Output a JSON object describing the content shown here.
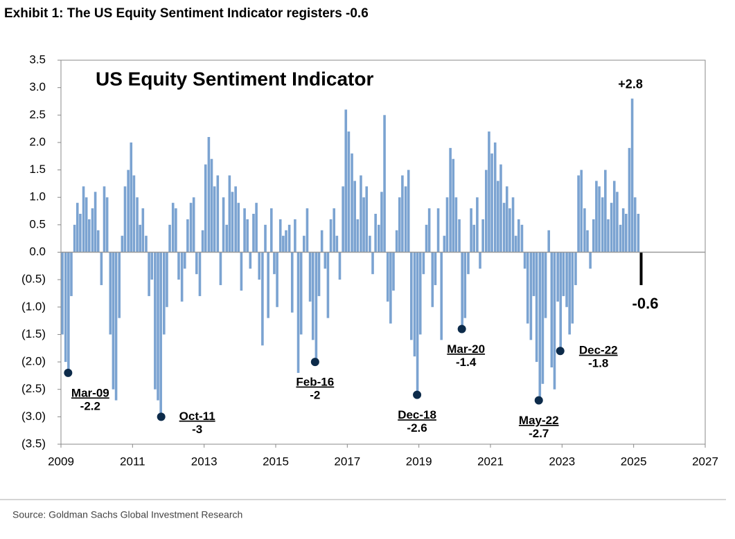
{
  "chart_data": {
    "type": "bar",
    "heading": "Exhibit 1: The US Equity Sentiment Indicator registers -0.6",
    "title": "US Equity Sentiment Indicator",
    "source": "Source: Goldman Sachs Global Investment Research",
    "x": [
      2009.04,
      2009.13,
      2009.21,
      2009.29,
      2009.38,
      2009.46,
      2009.54,
      2009.63,
      2009.71,
      2009.79,
      2009.88,
      2009.96,
      2010.04,
      2010.13,
      2010.21,
      2010.29,
      2010.38,
      2010.46,
      2010.54,
      2010.63,
      2010.71,
      2010.79,
      2010.88,
      2010.96,
      2011.04,
      2011.13,
      2011.21,
      2011.29,
      2011.38,
      2011.46,
      2011.54,
      2011.63,
      2011.71,
      2011.79,
      2011.88,
      2011.96,
      2012.04,
      2012.13,
      2012.21,
      2012.29,
      2012.38,
      2012.46,
      2012.54,
      2012.63,
      2012.71,
      2012.79,
      2012.88,
      2012.96,
      2013.04,
      2013.13,
      2013.21,
      2013.29,
      2013.38,
      2013.46,
      2013.54,
      2013.63,
      2013.71,
      2013.79,
      2013.88,
      2013.96,
      2014.04,
      2014.13,
      2014.21,
      2014.29,
      2014.38,
      2014.46,
      2014.54,
      2014.63,
      2014.71,
      2014.79,
      2014.88,
      2014.96,
      2015.04,
      2015.13,
      2015.21,
      2015.29,
      2015.38,
      2015.46,
      2015.54,
      2015.63,
      2015.71,
      2015.79,
      2015.88,
      2015.96,
      2016.04,
      2016.13,
      2016.21,
      2016.29,
      2016.38,
      2016.46,
      2016.54,
      2016.63,
      2016.71,
      2016.79,
      2016.88,
      2016.96,
      2017.04,
      2017.13,
      2017.21,
      2017.29,
      2017.38,
      2017.46,
      2017.54,
      2017.63,
      2017.71,
      2017.79,
      2017.88,
      2017.96,
      2018.04,
      2018.13,
      2018.21,
      2018.29,
      2018.38,
      2018.46,
      2018.54,
      2018.63,
      2018.71,
      2018.79,
      2018.88,
      2018.96,
      2019.04,
      2019.13,
      2019.21,
      2019.29,
      2019.38,
      2019.46,
      2019.54,
      2019.63,
      2019.71,
      2019.79,
      2019.88,
      2019.96,
      2020.04,
      2020.13,
      2020.21,
      2020.29,
      2020.38,
      2020.46,
      2020.54,
      2020.63,
      2020.71,
      2020.79,
      2020.88,
      2020.96,
      2021.04,
      2021.13,
      2021.21,
      2021.29,
      2021.38,
      2021.46,
      2021.54,
      2021.63,
      2021.71,
      2021.79,
      2021.88,
      2021.96,
      2022.04,
      2022.13,
      2022.21,
      2022.29,
      2022.38,
      2022.46,
      2022.54,
      2022.63,
      2022.71,
      2022.79,
      2022.88,
      2022.96,
      2023.04,
      2023.13,
      2023.21,
      2023.29,
      2023.38,
      2023.46,
      2023.54,
      2023.63,
      2023.71,
      2023.79,
      2023.88,
      2023.96,
      2024.04,
      2024.13,
      2024.21,
      2024.29,
      2024.38,
      2024.46,
      2024.54,
      2024.63,
      2024.71,
      2024.79,
      2024.88,
      2024.96,
      2025.04,
      2025.13,
      2025.21
    ],
    "values": [
      -1.5,
      -2.0,
      -2.2,
      -0.8,
      0.5,
      0.9,
      0.7,
      1.2,
      1.0,
      0.6,
      0.8,
      1.1,
      0.4,
      -0.6,
      1.2,
      1.0,
      -1.5,
      -2.5,
      -2.7,
      -1.2,
      0.3,
      1.2,
      1.5,
      2.0,
      1.4,
      1.0,
      0.5,
      0.8,
      0.3,
      -0.8,
      -0.5,
      -2.5,
      -2.7,
      -3.0,
      -1.5,
      -1.0,
      0.5,
      0.9,
      0.8,
      -0.5,
      -0.9,
      -0.3,
      0.6,
      0.9,
      1.0,
      -0.4,
      -0.8,
      0.4,
      1.6,
      2.1,
      1.7,
      1.2,
      1.4,
      -0.6,
      1.0,
      0.5,
      1.4,
      1.1,
      1.2,
      0.9,
      -0.7,
      0.8,
      0.6,
      -0.3,
      0.7,
      0.9,
      -0.5,
      -1.7,
      0.5,
      -1.2,
      0.8,
      -0.4,
      -1.0,
      0.6,
      0.3,
      0.4,
      0.5,
      -1.1,
      0.6,
      -2.2,
      -1.5,
      0.3,
      0.8,
      -0.9,
      -1.6,
      -2.0,
      -0.8,
      0.4,
      -0.3,
      -1.2,
      0.6,
      0.8,
      0.3,
      -0.5,
      1.2,
      2.6,
      2.2,
      1.8,
      1.3,
      0.6,
      1.4,
      1.0,
      1.2,
      0.3,
      -0.4,
      0.7,
      0.5,
      1.1,
      2.5,
      -0.9,
      -1.3,
      -0.7,
      0.4,
      1.0,
      1.4,
      1.2,
      1.5,
      -1.6,
      -1.9,
      -2.6,
      -1.5,
      -0.4,
      0.5,
      0.8,
      -1.0,
      -0.6,
      0.8,
      -1.6,
      0.3,
      1.0,
      1.9,
      1.7,
      1.0,
      0.6,
      -1.4,
      -1.2,
      -0.4,
      0.8,
      0.5,
      1.0,
      -0.3,
      0.6,
      1.5,
      2.2,
      1.8,
      2.0,
      1.3,
      1.6,
      0.9,
      1.2,
      0.8,
      1.0,
      0.3,
      0.6,
      0.5,
      -0.3,
      -1.3,
      -1.6,
      -0.8,
      -2.0,
      -2.7,
      -2.4,
      -1.2,
      0.4,
      -2.1,
      -2.5,
      -0.9,
      -1.8,
      -0.8,
      -1.0,
      -1.5,
      -1.3,
      -0.6,
      1.4,
      1.5,
      0.8,
      0.4,
      -0.3,
      0.6,
      1.3,
      1.2,
      1.0,
      1.5,
      0.6,
      0.9,
      1.3,
      1.1,
      0.5,
      0.8,
      0.7,
      1.9,
      2.8,
      1.0,
      0.7,
      -0.6
    ],
    "color": "#7ba3d1",
    "last_color": "#000000",
    "xlim": [
      2009,
      2027
    ],
    "xticks": [
      2009,
      2011,
      2013,
      2015,
      2017,
      2019,
      2021,
      2023,
      2025,
      2027
    ],
    "ylim": [
      -3.5,
      3.5
    ],
    "yticks": [
      {
        "value": 3.5,
        "label": "3.5"
      },
      {
        "value": 3.0,
        "label": "3.0"
      },
      {
        "value": 2.5,
        "label": "2.5"
      },
      {
        "value": 2.0,
        "label": "2.0"
      },
      {
        "value": 1.5,
        "label": "1.5"
      },
      {
        "value": 1.0,
        "label": "1.0"
      },
      {
        "value": 0.5,
        "label": "0.5"
      },
      {
        "value": 0,
        "label": "0.0"
      },
      {
        "value": -0.5,
        "label": "(0.5)"
      },
      {
        "value": -1.0,
        "label": "(1.0)"
      },
      {
        "value": -1.5,
        "label": "(1.5)"
      },
      {
        "value": -2.0,
        "label": "(2.0)"
      },
      {
        "value": -2.5,
        "label": "(2.5)"
      },
      {
        "value": -3.0,
        "label": "(3.0)"
      },
      {
        "value": -3.5,
        "label": "(3.5)"
      }
    ],
    "markers": [
      {
        "text": "Mar-09",
        "x": 2009.2,
        "y": -2.2
      },
      {
        "text": "Oct-11",
        "x": 2011.8,
        "y": -3.0
      },
      {
        "text": "Feb-16",
        "x": 2016.1,
        "y": -2.0
      },
      {
        "text": "Dec-18",
        "x": 2018.95,
        "y": -2.6
      },
      {
        "text": "Mar-20",
        "x": 2020.2,
        "y": -1.4
      },
      {
        "text": "May-22",
        "x": 2022.35,
        "y": -2.7
      },
      {
        "text": "Dec-22",
        "x": 2022.95,
        "y": -1.8
      }
    ],
    "marker_color": "#0d2b4a",
    "callouts": [
      {
        "label": "+2.8",
        "x": 2024.95,
        "y": 2.8
      },
      {
        "x": 2025.21,
        "y": -0.6
      }
    ]
  }
}
